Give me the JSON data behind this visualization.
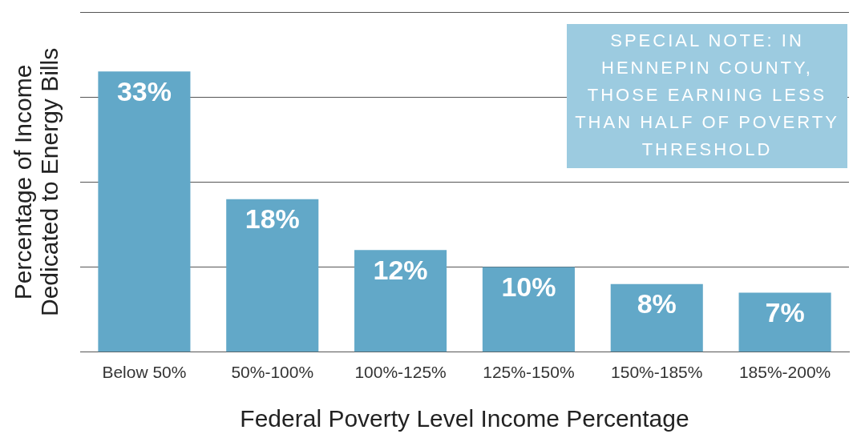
{
  "chart_data": {
    "type": "bar",
    "xlabel": "Federal Poverty Level Income Percentage",
    "ylabel": "Percentage of Income\nDedicated to Energy Bills",
    "categories": [
      "Below 50%",
      "50%-100%",
      "100%-125%",
      "125%-150%",
      "150%-185%",
      "185%-200%"
    ],
    "values": [
      33,
      18,
      12,
      10,
      8,
      7
    ],
    "color": "#62a8c8",
    "value_labels": [
      "33%",
      "18%",
      "12%",
      "10%",
      "8%",
      "7%"
    ],
    "ylim": [
      0,
      40
    ],
    "yticks": [
      {
        "value": 0,
        "label": null
      },
      {
        "value": 10,
        "label": null
      },
      {
        "value": 20,
        "label": null
      },
      {
        "value": 30,
        "label": null
      },
      {
        "value": 40,
        "label": null
      }
    ],
    "tick_labels": "x",
    "grid": "y",
    "legend": false,
    "annotations": [
      "SPECIAL NOTE: IN HENNEPIN COUNTY, THOSE EARNING LESS THAN HALF OF POVERTY THRESHOLD"
    ]
  }
}
